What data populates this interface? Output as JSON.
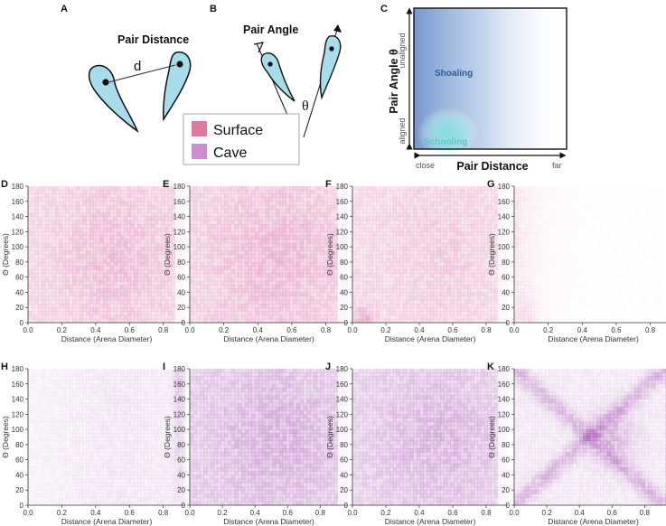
{
  "panels_top": {
    "A": {
      "label": "A",
      "title": "Pair Distance",
      "d_symbol": "d"
    },
    "B": {
      "label": "B",
      "title": "Pair Angle",
      "theta_symbol": "θ"
    },
    "legend": [
      {
        "name": "Surface",
        "color": "#de7aa1"
      },
      {
        "name": "Cave",
        "color": "#c98dd0"
      }
    ],
    "C": {
      "label": "C",
      "ylabel": "Pair Angle θ",
      "xlabel": "Pair Distance",
      "x_low": "close",
      "x_high": "far",
      "y_low": "aligned",
      "y_high": "unaligned",
      "region_shoaling": "Shoaling",
      "region_schooling": "Schooling",
      "colors": {
        "shoaling": "#6f93cc",
        "schooling": "#7fe0dc",
        "text_shoal": "#2b5a9a",
        "text_school": "#5ec7c6"
      }
    }
  },
  "chart_data": [
    {
      "type": "heatmap",
      "panel": "D",
      "group": "Surface",
      "color": "#d04e92",
      "intensity": 0.55,
      "pattern": "center",
      "x_ticks": [
        0.0,
        0.2,
        0.4,
        0.6,
        0.8
      ],
      "y_ticks": [
        0,
        20,
        40,
        60,
        80,
        100,
        120,
        140,
        160,
        180
      ],
      "xlim": [
        0,
        0.93
      ],
      "ylim": [
        0,
        180
      ],
      "xlabel": "Distance (Arena Diameter)",
      "ylabel": "Θ (Degrees)"
    },
    {
      "type": "heatmap",
      "panel": "E",
      "group": "Surface",
      "color": "#d04e92",
      "intensity": 0.6,
      "pattern": "center",
      "x_ticks": [
        0.0,
        0.2,
        0.4,
        0.6,
        0.8
      ],
      "y_ticks": [
        0,
        20,
        40,
        60,
        80,
        100,
        120,
        140,
        160,
        180
      ],
      "xlim": [
        0,
        0.93
      ],
      "ylim": [
        0,
        180
      ],
      "xlabel": "Distance (Arena Diameter)",
      "ylabel": "Θ (Degrees)"
    },
    {
      "type": "heatmap",
      "panel": "F",
      "group": "Surface",
      "color": "#d04e92",
      "intensity": 0.6,
      "pattern": "aligned_close",
      "x_ticks": [
        0.0,
        0.2,
        0.4,
        0.6,
        0.8
      ],
      "y_ticks": [
        0,
        20,
        40,
        60,
        80,
        100,
        120,
        140,
        160,
        180
      ],
      "xlim": [
        0,
        0.93
      ],
      "ylim": [
        0,
        180
      ],
      "xlabel": "Distance (Arena Diameter)",
      "ylabel": "Θ (Degrees)"
    },
    {
      "type": "heatmap",
      "panel": "G",
      "group": "Surface",
      "color": "#d04e92",
      "intensity": 0.35,
      "pattern": "sparse_close",
      "x_ticks": [
        0.0,
        0.2,
        0.4,
        0.6,
        0.8
      ],
      "y_ticks": [
        0,
        20,
        40,
        60,
        80,
        100,
        120,
        140,
        160,
        180
      ],
      "xlim": [
        0,
        0.93
      ],
      "ylim": [
        0,
        180
      ],
      "xlabel": "Distance (Arena Diameter)",
      "ylabel": "Θ (Degrees)"
    },
    {
      "type": "heatmap",
      "panel": "H",
      "group": "Cave",
      "color": "#9a3aa8",
      "intensity": 0.35,
      "pattern": "edge",
      "x_ticks": [
        0.0,
        0.2,
        0.4,
        0.6,
        0.8
      ],
      "y_ticks": [
        0,
        20,
        40,
        60,
        80,
        100,
        120,
        140,
        160,
        180
      ],
      "xlim": [
        0,
        0.93
      ],
      "ylim": [
        0,
        180
      ],
      "xlabel": "Distance (Arena Diameter)",
      "ylabel": "Θ (Degrees)"
    },
    {
      "type": "heatmap",
      "panel": "I",
      "group": "Cave",
      "color": "#9a3aa8",
      "intensity": 0.6,
      "pattern": "center",
      "x_ticks": [
        0.0,
        0.2,
        0.4,
        0.6,
        0.8
      ],
      "y_ticks": [
        0,
        20,
        40,
        60,
        80,
        100,
        120,
        140,
        160,
        180
      ],
      "xlim": [
        0,
        0.97
      ],
      "ylim": [
        0,
        180
      ],
      "xlabel": "Distance (Arena Diameter)",
      "ylabel": "Θ (Degrees)"
    },
    {
      "type": "heatmap",
      "panel": "J",
      "group": "Cave",
      "color": "#9a3aa8",
      "intensity": 0.55,
      "pattern": "center",
      "x_ticks": [
        0.0,
        0.2,
        0.4,
        0.6,
        0.8
      ],
      "y_ticks": [
        0,
        20,
        40,
        60,
        80,
        100,
        120,
        140,
        160,
        180
      ],
      "xlim": [
        0,
        0.93
      ],
      "ylim": [
        0,
        180
      ],
      "xlabel": "Distance (Arena Diameter)",
      "ylabel": "Θ (Degrees)"
    },
    {
      "type": "heatmap",
      "panel": "K",
      "group": "Cave",
      "color": "#9a3aa8",
      "intensity": 0.7,
      "pattern": "x_shape",
      "x_ticks": [
        0.0,
        0.2,
        0.4,
        0.6,
        0.8
      ],
      "y_ticks": [
        0,
        20,
        40,
        60,
        80,
        100,
        120,
        140,
        160,
        180
      ],
      "xlim": [
        0,
        0.97
      ],
      "ylim": [
        0,
        180
      ],
      "xlabel": "Distance (Arena Diameter)",
      "ylabel": "Θ (Degrees)"
    }
  ]
}
